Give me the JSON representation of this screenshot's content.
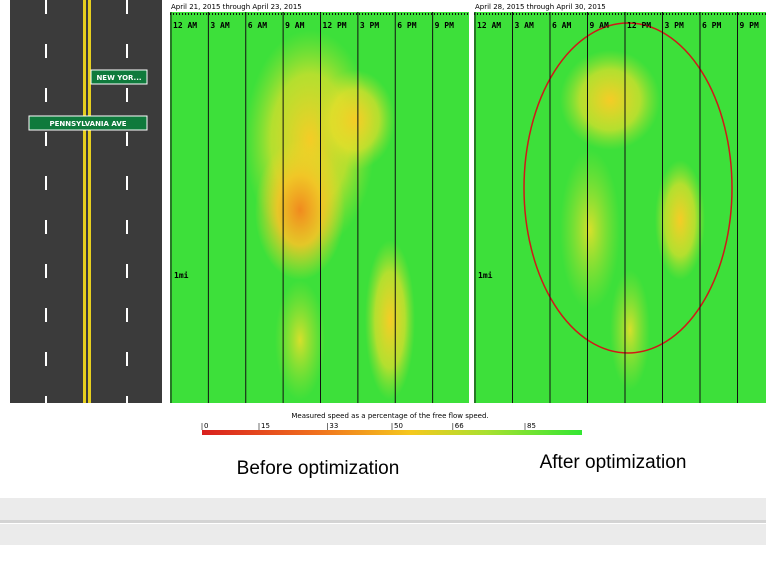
{
  "road": {
    "signs": [
      "NEW YOR...",
      "PENNSYLVANIA AVE"
    ]
  },
  "panels": [
    {
      "dates": "April 21, 2015 through April 23, 2015",
      "times": [
        "12 AM",
        "3 AM",
        "6 AM",
        "9 AM",
        "12 PM",
        "3 PM",
        "6 PM",
        "9 PM"
      ],
      "distance": "1mi",
      "caption": "Before optimization"
    },
    {
      "dates": "April 28, 2015 through April 30, 2015",
      "times": [
        "12 AM",
        "3 AM",
        "6 AM",
        "9 AM",
        "12 PM",
        "3 PM",
        "6 PM",
        "9 PM"
      ],
      "distance": "1mi",
      "caption": "After optimization"
    }
  ],
  "legend": {
    "title": "Measured speed as a percentage of the free flow speed.",
    "ticks": [
      0,
      15,
      33,
      50,
      66,
      85
    ]
  }
}
